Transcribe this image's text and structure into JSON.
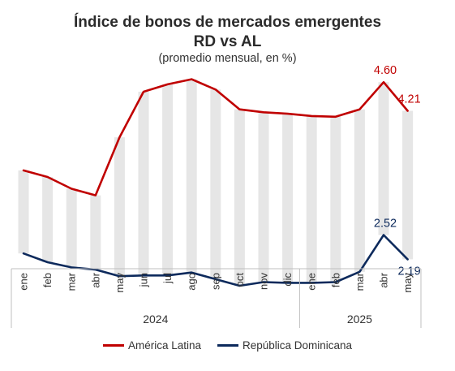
{
  "chart_data": {
    "type": "line",
    "title_line1": "Índice de bonos de mercados emergentes",
    "title_line2": "RD vs AL",
    "subtitle": "(promedio mensual, en %)",
    "categories": [
      "ene",
      "feb",
      "mar",
      "abr",
      "may",
      "jun",
      "jul",
      "ago",
      "sep",
      "oct",
      "nov",
      "dic",
      "ene",
      "feb",
      "mar",
      "abr",
      "may"
    ],
    "year_groups": [
      {
        "label": "2024",
        "start": 0,
        "end": 11
      },
      {
        "label": "2025",
        "start": 12,
        "end": 16
      }
    ],
    "series": [
      {
        "name": "América Latina",
        "color": "#c00000",
        "values": [
          3.4,
          3.31,
          3.15,
          3.06,
          3.85,
          4.47,
          4.57,
          4.64,
          4.5,
          4.23,
          4.19,
          4.17,
          4.14,
          4.13,
          4.23,
          4.6,
          4.21
        ]
      },
      {
        "name": "República Dominicana",
        "color": "#0d2a5c",
        "values": [
          2.27,
          2.15,
          2.08,
          2.05,
          1.96,
          1.97,
          1.97,
          2.01,
          1.92,
          1.83,
          1.88,
          1.87,
          1.87,
          1.88,
          2.02,
          2.52,
          2.19
        ]
      }
    ],
    "data_labels": [
      {
        "series": 0,
        "index": 15,
        "text": "4.60"
      },
      {
        "series": 0,
        "index": 16,
        "text": "4.21"
      },
      {
        "series": 1,
        "index": 15,
        "text": "2.52"
      },
      {
        "series": 1,
        "index": 16,
        "text": "2.19"
      }
    ],
    "range_bars": {
      "color": "#e6e6e6"
    },
    "ylim": [
      1.3,
      5.0
    ],
    "grid": false,
    "legend_position": "bottom"
  }
}
